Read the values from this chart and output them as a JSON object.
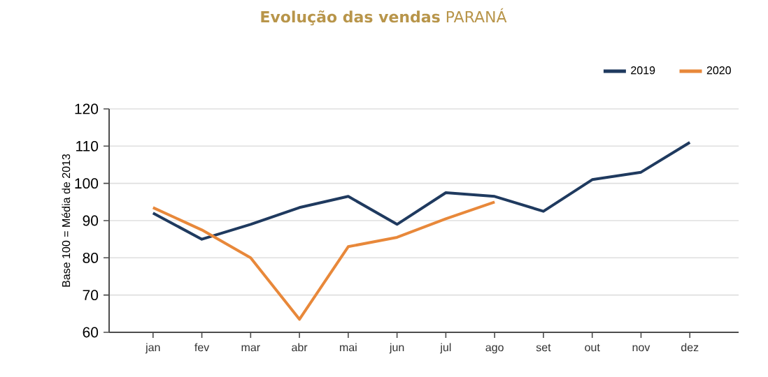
{
  "chart_data": {
    "type": "line",
    "title": "**Evolução das vendas** PARANÁ",
    "ylabel": "Base 100 = Média de 2013",
    "categories": [
      "jan",
      "fev",
      "mar",
      "abr",
      "mai",
      "jun",
      "jul",
      "ago",
      "set",
      "out",
      "nov",
      "dez"
    ],
    "series": [
      {
        "name": "2019",
        "color": "#1f3a5f",
        "values": [
          92,
          85,
          89,
          93.5,
          96.5,
          89,
          97.5,
          96.5,
          92.5,
          101,
          103,
          111
        ]
      },
      {
        "name": "2020",
        "color": "#e8883a",
        "values": [
          93.5,
          87.5,
          80,
          63.5,
          83,
          85.5,
          90.5,
          95,
          null,
          null,
          null,
          null
        ]
      }
    ],
    "ylim": [
      60,
      120
    ],
    "yticks": [
      60,
      70,
      80,
      90,
      100,
      110,
      120
    ],
    "grid": "y",
    "legend": "top right",
    "marker": "none",
    "line_style": "solid"
  }
}
